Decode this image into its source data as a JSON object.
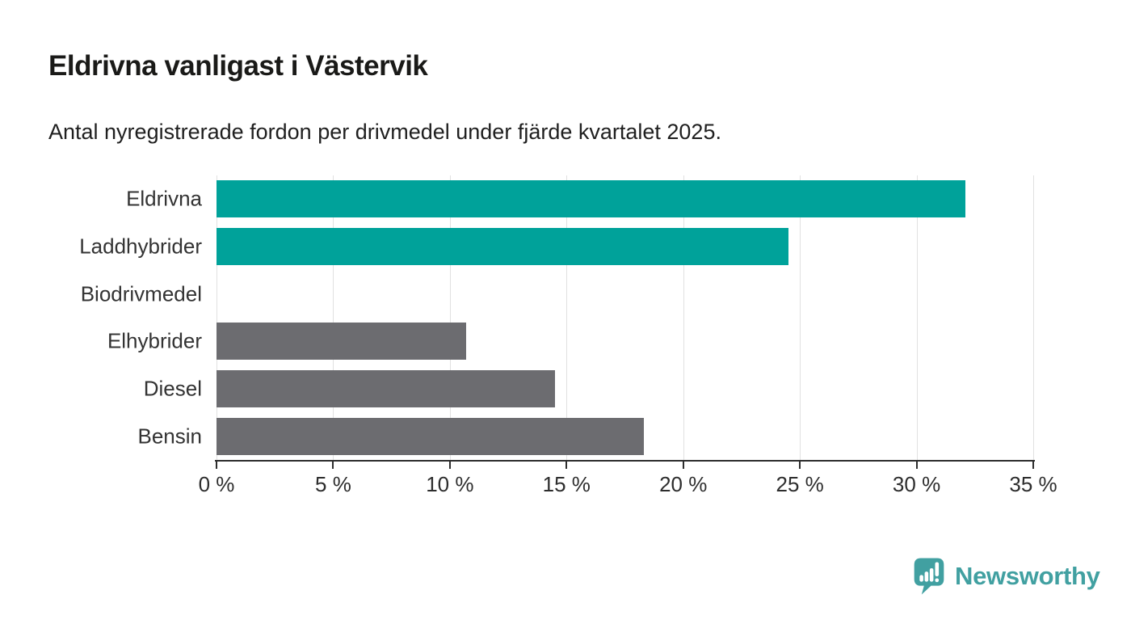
{
  "header": {
    "title": "Eldrivna vanligast i Västervik",
    "subtitle": "Antal nyregistrerade fordon per drivmedel under fjärde kvartalet 2025."
  },
  "chart_data": {
    "type": "bar",
    "orientation": "horizontal",
    "title": "Eldrivna vanligast i Västervik",
    "subtitle": "Antal nyregistrerade fordon per drivmedel under fjärde kvartalet 2025.",
    "categories": [
      "Eldrivna",
      "Laddhybrider",
      "Biodrivmedel",
      "Elhybrider",
      "Diesel",
      "Bensin"
    ],
    "values": [
      32.1,
      24.5,
      0,
      10.7,
      14.5,
      18.3
    ],
    "unit": "%",
    "xlabel": "",
    "ylabel": "",
    "xlim": [
      0,
      35
    ],
    "x_ticks": [
      0,
      5,
      10,
      15,
      20,
      25,
      30,
      35
    ],
    "x_tick_labels": [
      "0 %",
      "5 %",
      "10 %",
      "15 %",
      "20 %",
      "25 %",
      "30 %",
      "35 %"
    ],
    "bar_colors": [
      "#00A29A",
      "#00A29A",
      "#00A29A",
      "#6C6C70",
      "#6C6C70",
      "#6C6C70"
    ],
    "grid": "vertical-only",
    "legend": "none"
  },
  "colors": {
    "highlight_teal": "#00A29A",
    "neutral_gray": "#6C6C70",
    "gridline": "#e1e1e1",
    "axis": "#2d2d2d",
    "brand_teal": "#41A0A1"
  },
  "branding": {
    "logo_text": "Newsworthy",
    "logo_icon": "bar-chart-speech-bubble-icon"
  }
}
